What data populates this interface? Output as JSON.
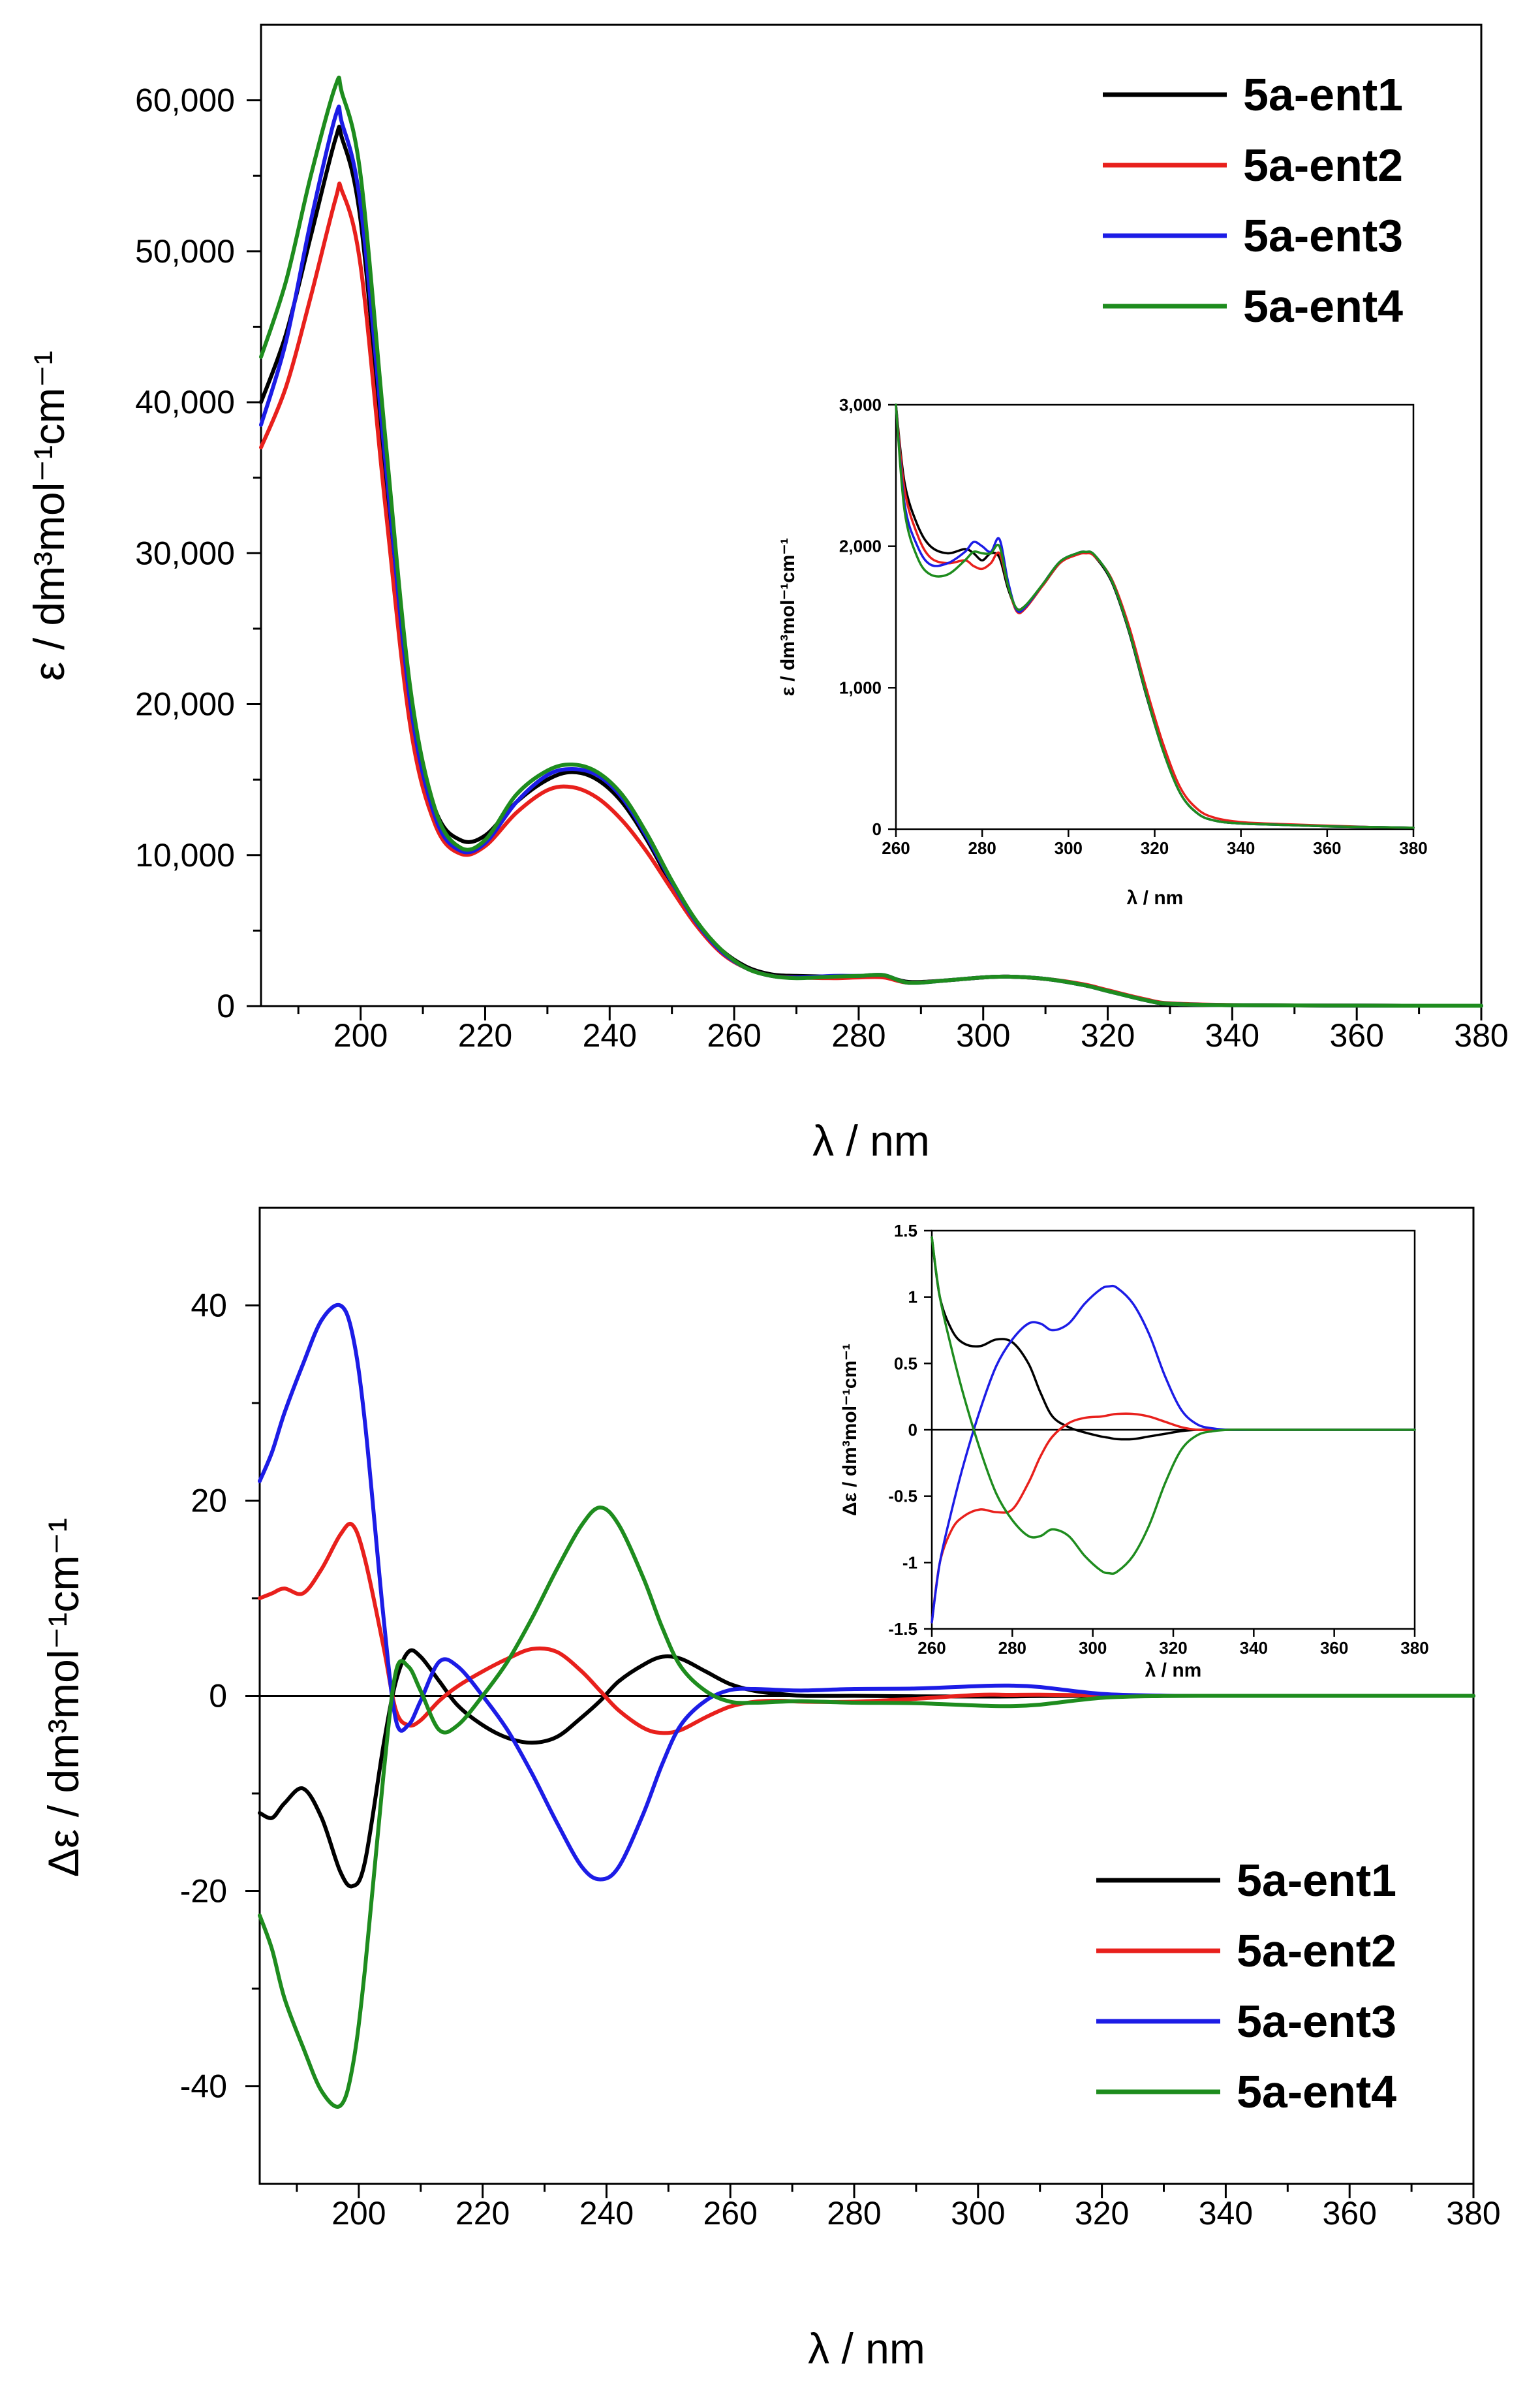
{
  "series_colors": [
    "#000000",
    "#e8201c",
    "#1c1ce6",
    "#1e8c1e"
  ],
  "chart_data": [
    {
      "id": "uv_main",
      "type": "line",
      "xlabel": "λ / nm",
      "ylabel": "ε / dm³mol⁻¹cm⁻¹",
      "xlim": [
        184,
        380
      ],
      "ylim": [
        0,
        65000
      ],
      "xticks": [
        200,
        220,
        240,
        260,
        280,
        300,
        320,
        340,
        360,
        380
      ],
      "yticks": [
        0,
        10000,
        20000,
        30000,
        40000,
        50000,
        60000
      ],
      "ytick_labels": [
        "0",
        "10,000",
        "20,000",
        "30,000",
        "40,000",
        "50,000",
        "60,000"
      ],
      "legend": [
        "5a-ent1",
        "5a-ent2",
        "5a-ent3",
        "5a-ent4"
      ],
      "legend_position": "top-right",
      "x": [
        184,
        188,
        192,
        196,
        197,
        200,
        204,
        208,
        212,
        216,
        220,
        225,
        230,
        234,
        238,
        242,
        246,
        250,
        254,
        258,
        262,
        266,
        270,
        276,
        280,
        284,
        288,
        294,
        300,
        304,
        310,
        316,
        320,
        326,
        330,
        340,
        360,
        380
      ],
      "series": [
        {
          "name": "5a-ent1",
          "values": [
            40000,
            44500,
            51000,
            57500,
            57500,
            52000,
            35000,
            20000,
            13000,
            11000,
            11300,
            13500,
            15000,
            15500,
            15000,
            13500,
            11000,
            8000,
            5500,
            3700,
            2600,
            2100,
            2000,
            1950,
            1950,
            2000,
            1600,
            1700,
            1900,
            1950,
            1800,
            1400,
            1000,
            400,
            150,
            60,
            30,
            20
          ]
        },
        {
          "name": "5a-ent2",
          "values": [
            37000,
            41000,
            47000,
            53500,
            54000,
            49000,
            33000,
            18500,
            12000,
            10100,
            10600,
            12800,
            14300,
            14500,
            13800,
            12300,
            10200,
            7700,
            5300,
            3500,
            2500,
            2000,
            1900,
            1850,
            1900,
            1900,
            1550,
            1700,
            1900,
            1950,
            1800,
            1450,
            1050,
            450,
            180,
            70,
            30,
            20
          ]
        },
        {
          "name": "5a-ent3",
          "values": [
            38500,
            44000,
            52000,
            59000,
            58500,
            53000,
            36000,
            20000,
            12500,
            10300,
            10800,
            13500,
            15300,
            15700,
            15300,
            13800,
            11200,
            8200,
            5500,
            3600,
            2500,
            2000,
            1900,
            2000,
            2000,
            2050,
            1550,
            1700,
            1900,
            1950,
            1800,
            1400,
            1000,
            400,
            150,
            60,
            30,
            20
          ]
        },
        {
          "name": "5a-ent4",
          "values": [
            43000,
            48000,
            55000,
            61000,
            60500,
            55000,
            37500,
            21000,
            13000,
            10500,
            11000,
            14000,
            15600,
            16000,
            15500,
            14000,
            11400,
            8300,
            5600,
            3700,
            2500,
            2000,
            1850,
            1950,
            2000,
            2050,
            1550,
            1700,
            1900,
            1950,
            1800,
            1400,
            1000,
            400,
            150,
            60,
            30,
            20
          ]
        }
      ]
    },
    {
      "id": "uv_inset",
      "type": "line",
      "xlabel": "λ / nm",
      "ylabel": "ε / dm³mol⁻¹cm⁻¹",
      "xlim": [
        260,
        380
      ],
      "ylim": [
        0,
        3000
      ],
      "xticks": [
        260,
        280,
        300,
        320,
        340,
        360,
        380
      ],
      "yticks": [
        0,
        1000,
        2000,
        3000
      ],
      "ytick_labels": [
        "0",
        "1,000",
        "2,000",
        "3,000"
      ],
      "x": [
        260,
        262,
        265,
        268,
        272,
        276,
        278,
        280,
        282,
        284,
        286,
        288,
        290,
        294,
        298,
        302,
        304,
        306,
        310,
        314,
        318,
        322,
        326,
        330,
        334,
        340,
        350,
        360,
        370,
        380
      ],
      "series": [
        {
          "name": "5a-ent1",
          "values": [
            3000,
            2450,
            2150,
            2000,
            1950,
            1980,
            1950,
            1900,
            1950,
            1920,
            1700,
            1560,
            1580,
            1720,
            1880,
            1950,
            1960,
            1930,
            1750,
            1400,
            950,
            550,
            250,
            110,
            60,
            40,
            30,
            20,
            15,
            10
          ]
        },
        {
          "name": "5a-ent2",
          "values": [
            3000,
            2400,
            2080,
            1920,
            1880,
            1900,
            1860,
            1840,
            1880,
            1950,
            1720,
            1540,
            1560,
            1720,
            1880,
            1940,
            1950,
            1930,
            1770,
            1440,
            1000,
            600,
            290,
            140,
            80,
            50,
            35,
            25,
            15,
            10
          ]
        },
        {
          "name": "5a-ent3",
          "values": [
            3000,
            2300,
            2000,
            1870,
            1880,
            1960,
            2030,
            2000,
            1960,
            2050,
            1750,
            1550,
            1570,
            1730,
            1890,
            1950,
            1960,
            1940,
            1760,
            1410,
            960,
            550,
            250,
            110,
            60,
            40,
            30,
            20,
            15,
            10
          ]
        },
        {
          "name": "5a-ent4",
          "values": [
            3000,
            2250,
            1920,
            1800,
            1800,
            1900,
            1960,
            1950,
            1950,
            2000,
            1720,
            1560,
            1580,
            1730,
            1890,
            1950,
            1960,
            1940,
            1760,
            1410,
            960,
            550,
            250,
            110,
            60,
            40,
            30,
            20,
            15,
            10
          ]
        }
      ]
    },
    {
      "id": "cd_main",
      "type": "line",
      "xlabel": "λ / nm",
      "ylabel": "Δε / dm³mol⁻¹cm⁻¹",
      "xlim": [
        184,
        380
      ],
      "ylim": [
        -50,
        50
      ],
      "xticks": [
        200,
        220,
        240,
        260,
        280,
        300,
        320,
        340,
        360,
        380
      ],
      "yticks": [
        -40,
        -20,
        0,
        20,
        40
      ],
      "ytick_labels": [
        "-40",
        "-20",
        "0",
        "20",
        "40"
      ],
      "legend": [
        "5a-ent1",
        "5a-ent2",
        "5a-ent3",
        "5a-ent4"
      ],
      "legend_position": "bottom-right",
      "x": [
        184,
        186,
        188,
        191,
        194,
        197,
        199,
        201,
        204,
        206,
        208,
        210,
        213,
        216,
        220,
        224,
        228,
        232,
        236,
        239,
        242,
        246,
        249,
        252,
        256,
        260,
        264,
        268,
        272,
        280,
        290,
        300,
        305,
        310,
        320,
        330,
        340,
        360,
        380
      ],
      "series": [
        {
          "name": "5a-ent1",
          "values": [
            -12,
            -12.5,
            -11,
            -9.5,
            -12.5,
            -18,
            -19.5,
            -17,
            -5,
            1.5,
            4.5,
            4,
            1.5,
            -1,
            -3,
            -4.3,
            -4.8,
            -4.2,
            -2.2,
            -0.5,
            1.5,
            3.2,
            4,
            3.8,
            2.5,
            1.2,
            0.5,
            0.2,
            0,
            0,
            -0.05,
            -0.07,
            -0.06,
            -0.02,
            0,
            0,
            0,
            0,
            0
          ]
        },
        {
          "name": "5a-ent2",
          "values": [
            10,
            10.5,
            11,
            10.5,
            13,
            16.5,
            17.5,
            14,
            5,
            -1.5,
            -3,
            -2.5,
            -0.5,
            1,
            2.5,
            3.8,
            4.8,
            4.5,
            2.5,
            0.5,
            -1.5,
            -3.3,
            -3.8,
            -3.5,
            -2.2,
            -1.1,
            -0.6,
            -0.5,
            -0.6,
            -0.6,
            -0.3,
            0.1,
            0.1,
            0.12,
            0.05,
            0,
            0,
            0,
            0
          ]
        },
        {
          "name": "5a-ent3",
          "values": [
            22,
            25,
            29,
            34,
            38.5,
            40,
            37,
            28,
            8,
            -2.5,
            -3,
            -0.5,
            3.5,
            3,
            0,
            -3.5,
            -8,
            -13,
            -17.5,
            -18.8,
            -17.5,
            -12,
            -7,
            -3,
            -0.5,
            0.6,
            0.7,
            0.6,
            0.55,
            0.7,
            0.75,
            1.0,
            1.05,
            0.9,
            0.2,
            0.02,
            0,
            0,
            0
          ]
        },
        {
          "name": "5a-ent4",
          "values": [
            -22.5,
            -26,
            -31,
            -36,
            -40.5,
            -42,
            -38,
            -28,
            -8,
            2.5,
            3,
            0.5,
            -3.5,
            -3,
            0,
            3.5,
            8,
            13,
            17.5,
            19.3,
            17.5,
            12,
            7,
            3,
            0.5,
            -0.6,
            -0.7,
            -0.6,
            -0.55,
            -0.7,
            -0.75,
            -1.0,
            -1.05,
            -0.9,
            -0.2,
            -0.02,
            0,
            0,
            0
          ]
        }
      ]
    },
    {
      "id": "cd_inset",
      "type": "line",
      "xlabel": "λ / nm",
      "ylabel": "Δε / dm³mol⁻¹cm⁻¹",
      "xlim": [
        260,
        380
      ],
      "ylim": [
        -1.5,
        1.5
      ],
      "xticks": [
        260,
        280,
        300,
        320,
        340,
        360,
        380
      ],
      "yticks": [
        -1.5,
        -1,
        -0.5,
        0,
        0.5,
        1,
        1.5
      ],
      "ytick_labels": [
        "-1.5",
        "-1",
        "-0.5",
        "0",
        "0.5",
        "1",
        "1.5"
      ],
      "x": [
        260,
        262,
        265,
        268,
        272,
        276,
        280,
        284,
        287,
        290,
        294,
        298,
        302,
        304,
        306,
        310,
        314,
        318,
        322,
        326,
        330,
        334,
        340,
        350,
        360,
        370,
        380
      ],
      "series": [
        {
          "name": "5a-ent1",
          "values": [
            1.45,
            1.0,
            0.75,
            0.65,
            0.63,
            0.68,
            0.66,
            0.5,
            0.28,
            0.1,
            0.02,
            -0.02,
            -0.05,
            -0.06,
            -0.07,
            -0.07,
            -0.05,
            -0.03,
            -0.01,
            0,
            0,
            0,
            0,
            0,
            0,
            0,
            0
          ]
        },
        {
          "name": "5a-ent2",
          "values": [
            -1.45,
            -1.0,
            -0.75,
            -0.65,
            -0.6,
            -0.62,
            -0.6,
            -0.4,
            -0.2,
            -0.05,
            0.05,
            0.09,
            0.1,
            0.11,
            0.12,
            0.12,
            0.1,
            0.06,
            0.02,
            0,
            0,
            0,
            0,
            0,
            0,
            0,
            0
          ]
        },
        {
          "name": "5a-ent3",
          "values": [
            -1.45,
            -1.0,
            -0.6,
            -0.25,
            0.15,
            0.48,
            0.68,
            0.8,
            0.8,
            0.75,
            0.8,
            0.95,
            1.06,
            1.08,
            1.07,
            0.95,
            0.72,
            0.4,
            0.15,
            0.04,
            0.01,
            0,
            0,
            0,
            0,
            0,
            0
          ]
        },
        {
          "name": "5a-ent4",
          "values": [
            1.45,
            1.0,
            0.6,
            0.25,
            -0.15,
            -0.48,
            -0.68,
            -0.8,
            -0.8,
            -0.75,
            -0.8,
            -0.95,
            -1.06,
            -1.08,
            -1.07,
            -0.95,
            -0.72,
            -0.4,
            -0.15,
            -0.04,
            -0.01,
            0,
            0,
            0,
            0,
            0,
            0
          ]
        }
      ]
    }
  ]
}
